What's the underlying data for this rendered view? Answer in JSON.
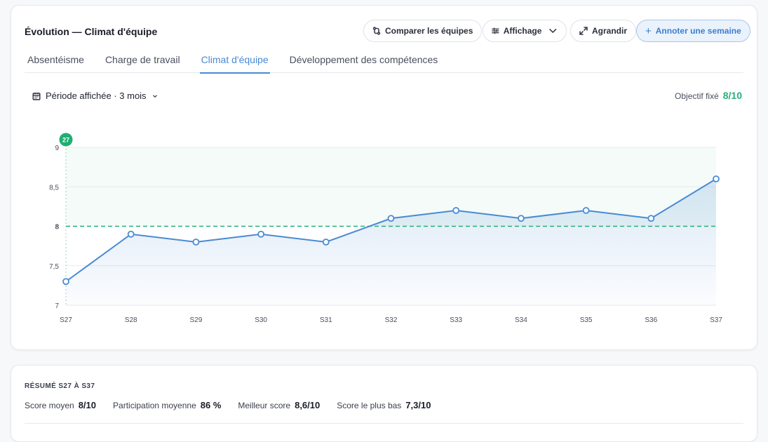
{
  "header": {
    "title": "Évolution — Climat d'équipe",
    "buttons": {
      "compare": "Comparer les équipes",
      "display": "Affichage",
      "expand": "Agrandir",
      "annotate": "Annoter une semaine"
    }
  },
  "tabs": [
    {
      "label": "Absentéisme"
    },
    {
      "label": "Charge de travail"
    },
    {
      "label": "Climat d'équipe"
    },
    {
      "label": "Développement des compétences"
    }
  ],
  "controls": {
    "period_label": "Période affichée · 3 mois",
    "target_label": "Objectif fixé",
    "target_value": "8/10"
  },
  "colors": {
    "line": "#4a8ad4",
    "target": "#27b07a",
    "active_tab": "#4a8ad4"
  },
  "chart_data": {
    "type": "line",
    "categories": [
      "S27",
      "S28",
      "S29",
      "S30",
      "S31",
      "S32",
      "S33",
      "S34",
      "S35",
      "S36",
      "S37"
    ],
    "series": [
      {
        "values": [
          7.3,
          7.9,
          7.8,
          7.9,
          7.8,
          8.1,
          8.2,
          8.1,
          8.2,
          8.1,
          8.6
        ]
      }
    ],
    "ylim": [
      7,
      9
    ],
    "yticks": [
      "7",
      "7,5",
      "8",
      "8,5",
      "9"
    ],
    "ytick_values": [
      7,
      7.5,
      8,
      8.5,
      9
    ],
    "target": 8,
    "highlight_marker": "27",
    "grid": true
  },
  "summary": {
    "title": "RÉSUMÉ S27 À S37",
    "stats": [
      {
        "label": "Score moyen",
        "value": "8/10"
      },
      {
        "label": "Participation moyenne",
        "value": "86 %"
      },
      {
        "label": "Meilleur score",
        "value": "8,6/10"
      },
      {
        "label": "Score le plus bas",
        "value": "7,3/10"
      }
    ]
  }
}
